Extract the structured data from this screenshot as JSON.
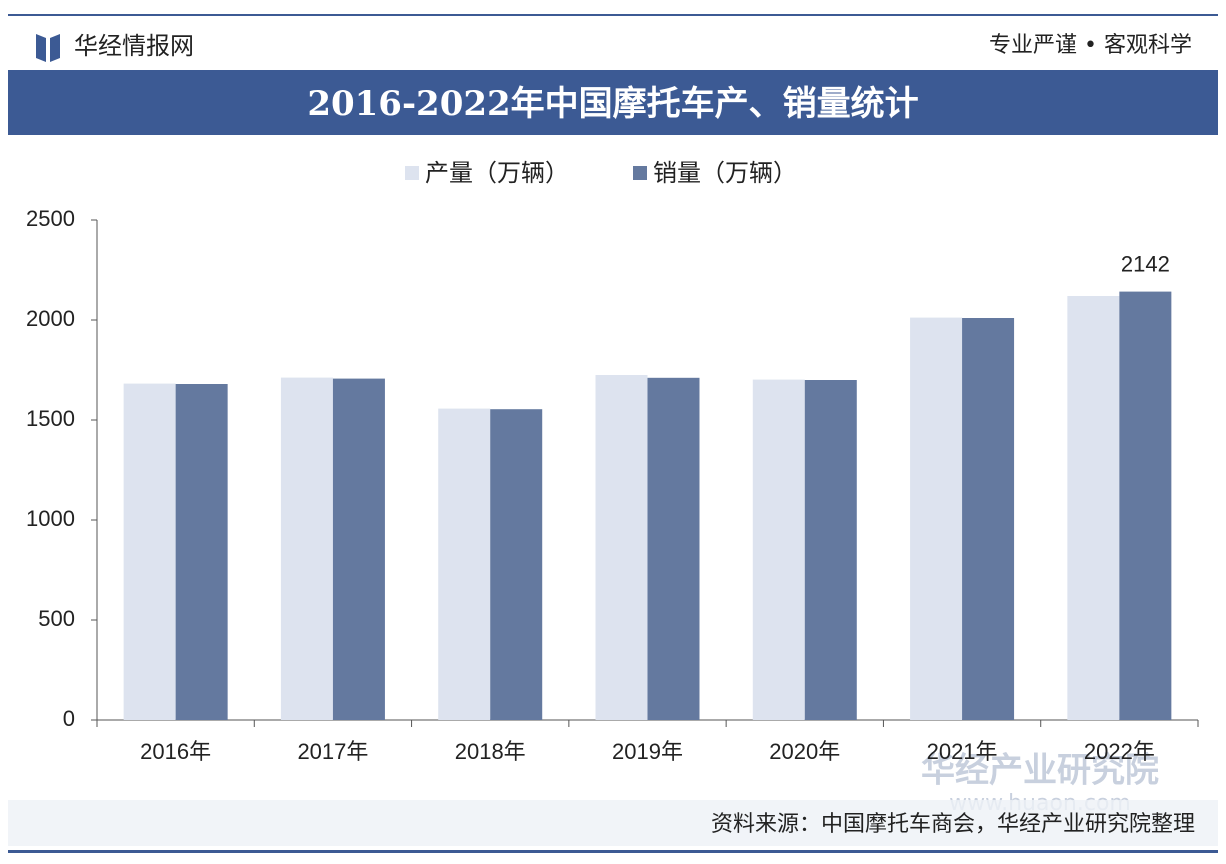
{
  "header": {
    "brand": "华经情报网",
    "slogan": "专业严谨 • 客观科学"
  },
  "chart_data": {
    "type": "bar",
    "title": "2016-2022年中国摩托车产、销量统计",
    "categories": [
      "2016年",
      "2017年",
      "2018年",
      "2019年",
      "2020年",
      "2021年",
      "2022年"
    ],
    "series": [
      {
        "name": "产量（万辆）",
        "color": "#dde3ef",
        "values": [
          1682,
          1712,
          1557,
          1725,
          1702,
          2012,
          2120
        ]
      },
      {
        "name": "销量（万辆）",
        "color": "#64799f",
        "values": [
          1680,
          1707,
          1554,
          1711,
          1700,
          2010,
          2142
        ],
        "value_labels": [
          null,
          null,
          null,
          null,
          null,
          null,
          "2142"
        ]
      }
    ],
    "ylim": [
      0,
      2500
    ],
    "yticks": [
      0,
      500,
      1000,
      1500,
      2000,
      2500
    ],
    "grid": false,
    "legend": "top"
  },
  "watermark": {
    "name": "华经产业研究院",
    "url": "www.huaon.com"
  },
  "footer": {
    "source": "资料来源：中国摩托车商会，华经产业研究院整理"
  }
}
